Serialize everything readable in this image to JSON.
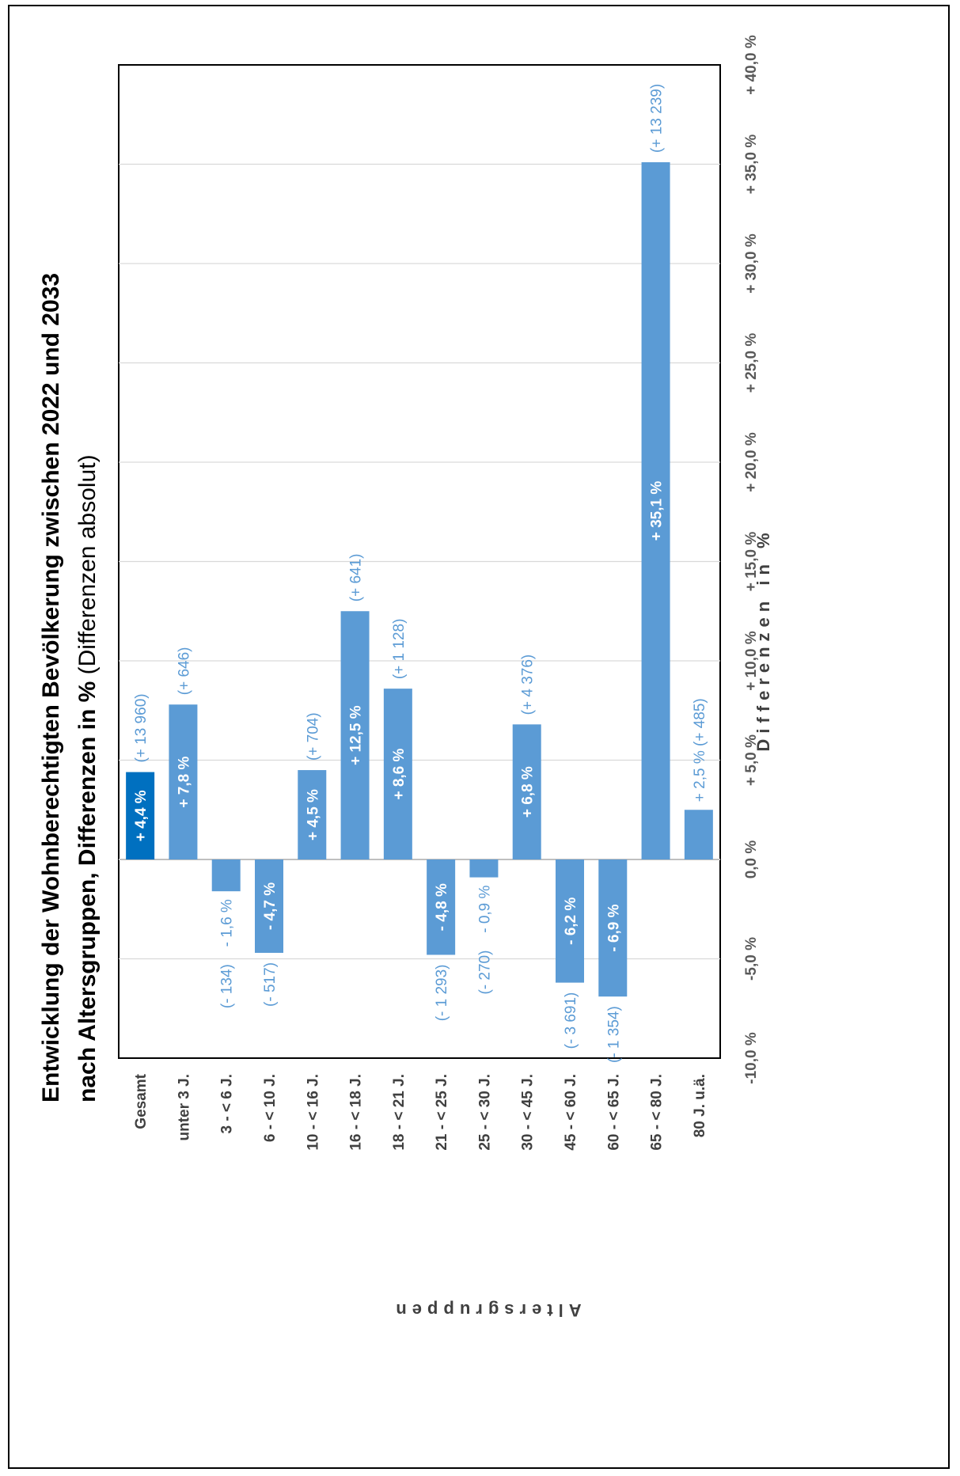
{
  "title": {
    "line1": "Entwicklung der Wohnberechtigten Bevölkerung zwischen 2022 und 2033",
    "line2_bold": "nach Altersgruppen, Differenzen in %",
    "line2_normal": " (Differenzen absolut)"
  },
  "colors": {
    "total_bar": "#0070c0",
    "bar": "#5b9bd5",
    "label": "#5b9bd5",
    "grid": "#d9d9d9"
  },
  "chart_data": {
    "type": "bar",
    "orientation": "rotated-horizontal",
    "xlabel": "Altersgruppen",
    "ylabel": "Differenzen in %",
    "ylim": [
      -10,
      40
    ],
    "y_ticks": [
      "-10,0 %",
      "-5,0 %",
      "0,0 %",
      "+ 5,0 %",
      "+ 10,0 %",
      "+ 15,0 %",
      "+ 20,0 %",
      "+ 25,0 %",
      "+ 30,0 %",
      "+ 35,0 %",
      "+ 40,0 %"
    ],
    "grid": true,
    "categories": [
      "Gesamt",
      "unter 3 J.",
      "3 - < 6 J.",
      "6 - < 10 J.",
      "10 - < 16 J.",
      "16 - < 18 J.",
      "18 - < 21 J.",
      "21 - < 25 J.",
      "25 - < 30 J.",
      "30 - < 45 J.",
      "45 - < 60 J.",
      "60 - < 65 J.",
      "65 - < 80 J.",
      "80 J. u.ä."
    ],
    "values": [
      4.4,
      7.8,
      -1.6,
      -4.7,
      4.5,
      12.5,
      8.6,
      -4.8,
      -0.9,
      6.8,
      -6.2,
      -6.9,
      35.1,
      2.5
    ],
    "value_labels": [
      "+ 4,4 %",
      "+ 7,8 %",
      "- 1,6 %",
      "- 4,7 %",
      "+ 4,5 %",
      "+ 12,5 %",
      "+ 8,6 %",
      "- 4,8 %",
      "- 0,9 %",
      "+ 6,8 %",
      "- 6,2 %",
      "- 6,9 %",
      "+ 35,1 %",
      "+ 2,5 %"
    ],
    "absolute_labels": [
      "(+ 13 960)",
      "(+ 646)",
      "(- 134)",
      "(- 517)",
      "(+ 704)",
      "(+ 641)",
      "(+ 1 128)",
      "(- 1 293)",
      "(- 270)",
      "(+ 4 376)",
      "(- 3 691)",
      "(- 1 354)",
      "(+ 13 239)",
      "(+ 485)"
    ],
    "absolute_values": [
      13960,
      646,
      -134,
      -517,
      704,
      641,
      1128,
      -1293,
      -270,
      4376,
      -3691,
      -1354,
      13239,
      485
    ]
  }
}
